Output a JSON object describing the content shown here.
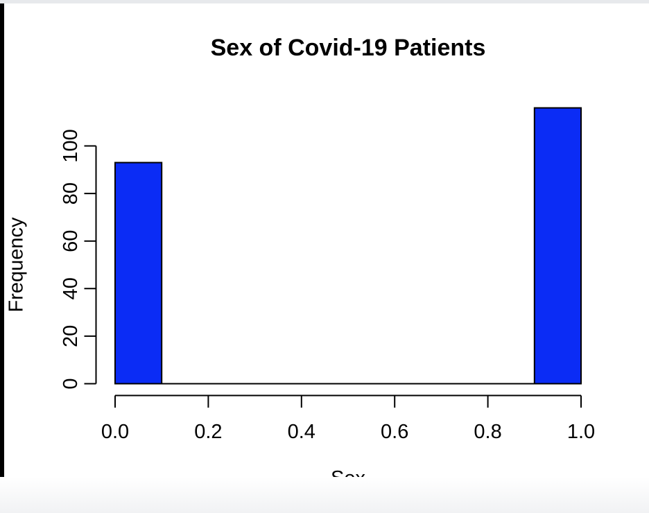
{
  "window": {
    "background": "#ffffff",
    "top_strip_color": "#e7e9ec",
    "left_strip_color": "#000000",
    "bottom_fade_color": "#f1f2f4"
  },
  "chart_data": {
    "type": "bar",
    "subtype": "histogram",
    "title": "Sex of Covid-19 Patients",
    "xlabel": "Sex",
    "ylabel": "Frequency",
    "bins": [
      {
        "from": 0.0,
        "to": 0.1,
        "count": 93
      },
      {
        "from": 0.1,
        "to": 0.2,
        "count": 0
      },
      {
        "from": 0.2,
        "to": 0.3,
        "count": 0
      },
      {
        "from": 0.3,
        "to": 0.4,
        "count": 0
      },
      {
        "from": 0.4,
        "to": 0.5,
        "count": 0
      },
      {
        "from": 0.5,
        "to": 0.6,
        "count": 0
      },
      {
        "from": 0.6,
        "to": 0.7,
        "count": 0
      },
      {
        "from": 0.7,
        "to": 0.8,
        "count": 0
      },
      {
        "from": 0.8,
        "to": 0.9,
        "count": 0
      },
      {
        "from": 0.9,
        "to": 1.0,
        "count": 116
      }
    ],
    "xlim": [
      0.0,
      1.0
    ],
    "ylim": [
      0,
      116
    ],
    "xticks": {
      "values": [
        0.0,
        0.2,
        0.4,
        0.6,
        0.8,
        1.0
      ],
      "labels": [
        "0.0",
        "0.2",
        "0.4",
        "0.6",
        "0.8",
        "1.0"
      ]
    },
    "yticks": {
      "values": [
        0,
        20,
        40,
        60,
        80,
        100
      ],
      "labels": [
        "0",
        "20",
        "40",
        "60",
        "80",
        "100"
      ]
    },
    "bar_fill": "#0b2cf5",
    "bar_stroke": "#000000",
    "axis_color": "#000000",
    "grid": false,
    "legend": "none"
  }
}
